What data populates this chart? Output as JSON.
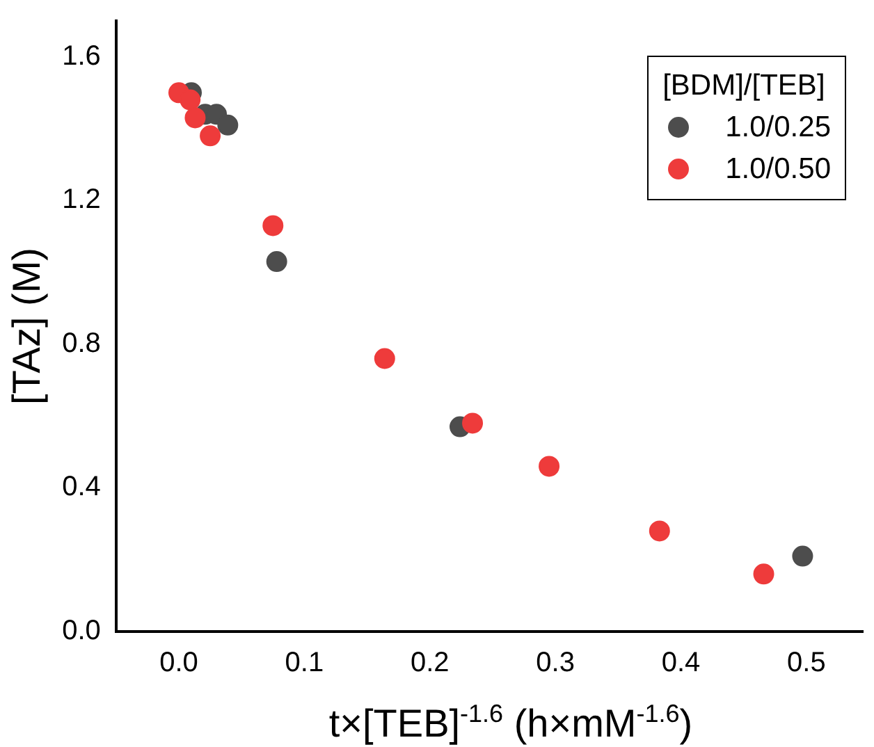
{
  "chart_data": {
    "type": "scatter",
    "xlabel": "t×[TEB]$^{-1.6}$ (h×mM$^{-1.6}$)",
    "ylabel": "[TAz] (M)",
    "legend_title": "[BDM]/[TEB]",
    "series": [
      {
        "name": "1.0/0.25",
        "color": "#4d4d4d",
        "x": [
          0.01,
          0.021,
          0.03,
          0.039,
          0.078,
          0.224,
          0.497
        ],
        "values": [
          1.5,
          1.44,
          1.44,
          1.41,
          1.03,
          0.57,
          0.21
        ]
      },
      {
        "name": "1.0/0.50",
        "color": "#ee3b3b",
        "x": [
          0.0,
          0.009,
          0.013,
          0.025,
          0.075,
          0.164,
          0.234,
          0.295,
          0.383,
          0.466
        ],
        "values": [
          1.5,
          1.48,
          1.43,
          1.38,
          1.13,
          0.76,
          0.58,
          0.46,
          0.28,
          0.16
        ]
      }
    ],
    "xlim": [
      -0.05,
      0.545
    ],
    "ylim": [
      0,
      1.7
    ],
    "xticks": [
      {
        "value": 0,
        "label": "0.0"
      },
      0.1,
      0.2,
      0.3,
      0.4,
      0.5
    ],
    "yticks": [
      {
        "value": 0,
        "label": "0.0"
      },
      0.4,
      0.8,
      1.2,
      1.6
    ],
    "legend": "top right",
    "marker": "circle",
    "grid": false
  }
}
